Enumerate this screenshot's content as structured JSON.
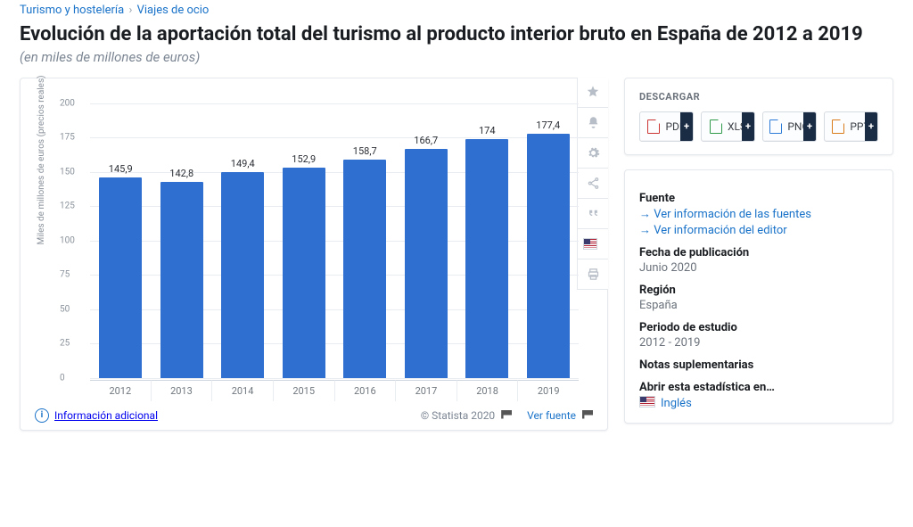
{
  "breadcrumb": {
    "a": "Turismo y hostelería",
    "sep": "›",
    "b": "Viajes de ocio"
  },
  "title": "Evolución de la aportación total del turismo al producto interior bruto en España de 2012 a 2019",
  "subtitle": "(en miles de millones de euros)",
  "chart": {
    "type": "bar",
    "ylabel": "Miles de millones de euros (precios reales)",
    "ylim": [
      0,
      200
    ],
    "ytick_step": 25,
    "bar_color": "#2f6fd0",
    "grid_color": "#e9edf2",
    "background_color": "#ffffff",
    "bar_width": 0.7,
    "label_fontsize": 11,
    "ylabel_fontsize": 10,
    "categories": [
      "2012",
      "2013",
      "2014",
      "2015",
      "2016",
      "2017",
      "2018",
      "2019"
    ],
    "values": [
      145.9,
      142.8,
      149.4,
      152.9,
      158.7,
      166.7,
      174,
      177.4
    ],
    "value_labels": [
      "145,9",
      "142,8",
      "149,4",
      "152,9",
      "158,7",
      "166,7",
      "174",
      "177,4"
    ]
  },
  "footer": {
    "info": "Información adicional",
    "copyright": "© Statista 2020",
    "source": "Ver fuente"
  },
  "download": {
    "heading": "DESCARGAR",
    "items": [
      {
        "label": "PDF",
        "cls": "fi-pdf"
      },
      {
        "label": "XLS",
        "cls": "fi-xls"
      },
      {
        "label": "PNG",
        "cls": "fi-png"
      },
      {
        "label": "PPT",
        "cls": "fi-ppt"
      }
    ]
  },
  "meta": {
    "source_h": "Fuente",
    "src1": "Ver información de las fuentes",
    "src2": "Ver información del editor",
    "pub_h": "Fecha de publicación",
    "pub_v": "Junio 2020",
    "reg_h": "Región",
    "reg_v": "España",
    "per_h": "Periodo de estudio",
    "per_v": "2012 - 2019",
    "notes_h": "Notas suplementarias",
    "open_h": "Abrir esta estadística en…",
    "lang": "Inglés"
  }
}
